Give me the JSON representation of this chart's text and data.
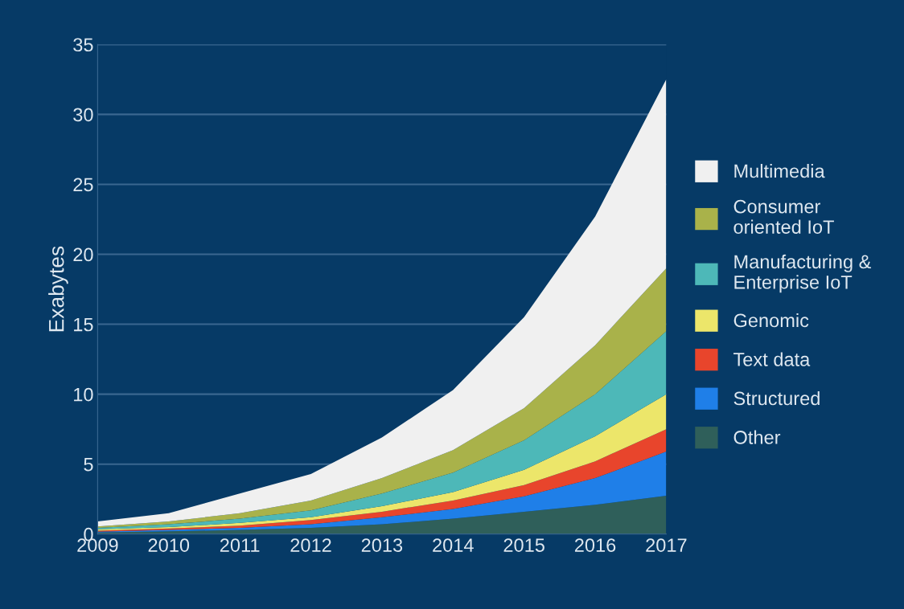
{
  "chart_data": {
    "type": "area",
    "stacked": true,
    "ylabel": "Exabytes",
    "x": [
      2009,
      2010,
      2011,
      2012,
      2013,
      2014,
      2015,
      2016,
      2017
    ],
    "xlim": [
      2009,
      2017
    ],
    "xticks": [
      2009,
      2010,
      2011,
      2012,
      2013,
      2014,
      2015,
      2016,
      2017
    ],
    "ylim": [
      0,
      35
    ],
    "yticks": [
      0,
      5,
      10,
      15,
      20,
      25,
      30,
      35
    ],
    "grid": "y",
    "legend": "right",
    "series": [
      {
        "name": "Other",
        "color": "#2f5f5a",
        "values": [
          0.12,
          0.2,
          0.3,
          0.45,
          0.7,
          1.1,
          1.6,
          2.1,
          2.75
        ]
      },
      {
        "name": "Structured",
        "color": "#1f7fe8",
        "values": [
          0.06,
          0.1,
          0.15,
          0.25,
          0.5,
          0.7,
          1.1,
          1.9,
          3.15
        ]
      },
      {
        "name": "Text data",
        "color": "#e8452c",
        "values": [
          0.07,
          0.1,
          0.15,
          0.3,
          0.4,
          0.6,
          0.8,
          1.2,
          1.6
        ]
      },
      {
        "name": "Genomic",
        "color": "#ece66a",
        "values": [
          0.1,
          0.1,
          0.2,
          0.2,
          0.4,
          0.6,
          1.1,
          1.8,
          2.5
        ]
      },
      {
        "name": "Manufacturing &\nEnterprise IoT",
        "color": "#4db8b8",
        "values": [
          0.1,
          0.2,
          0.3,
          0.5,
          0.9,
          1.4,
          2.1,
          3.0,
          4.5
        ]
      },
      {
        "name": "Consumer\noriented IoT",
        "color": "#a9b24a",
        "values": [
          0.1,
          0.2,
          0.4,
          0.7,
          1.1,
          1.6,
          2.3,
          3.5,
          4.5
        ]
      },
      {
        "name": "Multimedia",
        "color": "#f0f0f0",
        "values": [
          0.35,
          0.6,
          1.4,
          1.9,
          2.9,
          4.3,
          6.5,
          9.2,
          13.5
        ]
      }
    ]
  }
}
